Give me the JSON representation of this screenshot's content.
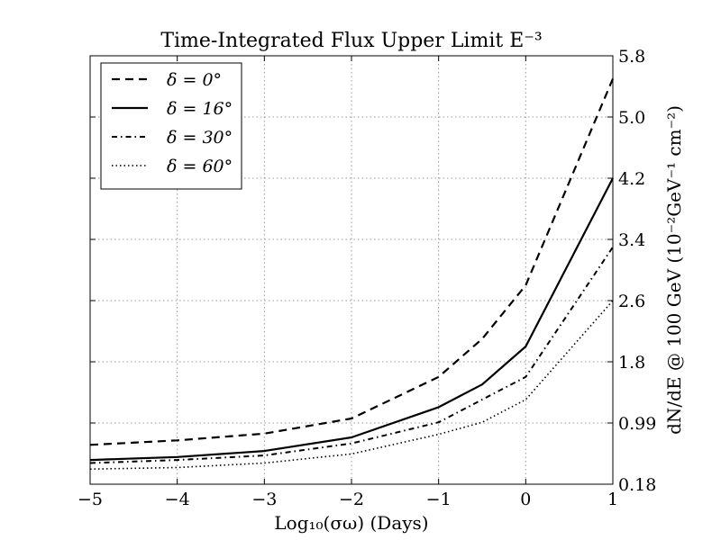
{
  "chart_data": {
    "type": "line",
    "title": "Time-Integrated Flux Upper Limit E⁻³",
    "xlabel": "Log₁₀(σω)     (Days)",
    "ylabel": "dN/dE @ 100 GeV (10⁻²GeV⁻¹ cm⁻²)",
    "xlim": [
      -5,
      1
    ],
    "ylim": [
      0.18,
      5.8
    ],
    "y_axis_side": "right",
    "grid": true,
    "legend_position": "top-left",
    "x_ticks": [
      -5,
      -4,
      -3,
      -2,
      -1,
      0,
      1
    ],
    "x_tick_labels": [
      "−5",
      "−4",
      "−3",
      "−2",
      "−1",
      "0",
      "1"
    ],
    "y_ticks": [
      0.18,
      0.99,
      1.8,
      2.6,
      3.4,
      4.2,
      5.0,
      5.8
    ],
    "y_tick_labels": [
      "0.18",
      "0.99",
      "1.8",
      "2.6",
      "3.4",
      "4.2",
      "5.0",
      "5.8"
    ],
    "series": [
      {
        "name": "δ = 0°",
        "style": "dashed",
        "x": [
          -5,
          -4,
          -3,
          -2,
          -1,
          -0.5,
          0,
          1
        ],
        "y": [
          0.7,
          0.76,
          0.85,
          1.05,
          1.6,
          2.1,
          2.8,
          5.5
        ]
      },
      {
        "name": "δ = 16°",
        "style": "solid",
        "x": [
          -5,
          -4,
          -3,
          -2,
          -1,
          -0.5,
          0,
          1
        ],
        "y": [
          0.5,
          0.54,
          0.62,
          0.8,
          1.2,
          1.5,
          2.0,
          4.2
        ]
      },
      {
        "name": "δ = 30°",
        "style": "dashdot",
        "x": [
          -5,
          -4,
          -3,
          -2,
          -1,
          -0.5,
          0,
          1
        ],
        "y": [
          0.46,
          0.5,
          0.56,
          0.72,
          1.0,
          1.3,
          1.6,
          3.3
        ]
      },
      {
        "name": "δ = 60°",
        "style": "dotted",
        "x": [
          -5,
          -4,
          -3,
          -2,
          -1,
          -0.5,
          0,
          1
        ],
        "y": [
          0.38,
          0.4,
          0.46,
          0.58,
          0.84,
          1.0,
          1.3,
          2.6
        ]
      }
    ],
    "colors": {
      "line": "#000000",
      "grid": "#9a9a9a",
      "frame": "#000000",
      "background": "#ffffff"
    }
  }
}
